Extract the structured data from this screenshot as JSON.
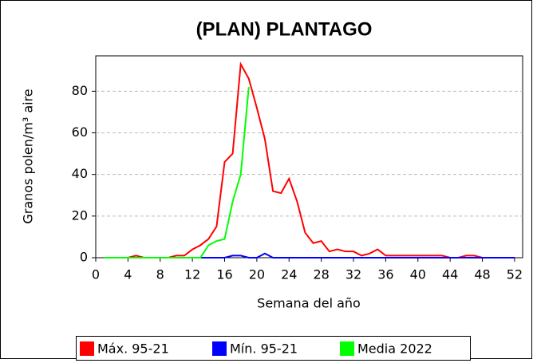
{
  "chart_data": {
    "type": "line",
    "title": "(PLAN)  PLANTAGO",
    "x_label": "Semana del año",
    "y_label": "Granos polen/m³ aire",
    "x": [
      1,
      2,
      3,
      4,
      5,
      6,
      7,
      8,
      9,
      10,
      11,
      12,
      13,
      14,
      15,
      16,
      17,
      18,
      19,
      20,
      21,
      22,
      23,
      24,
      25,
      26,
      27,
      28,
      29,
      30,
      31,
      32,
      33,
      34,
      35,
      36,
      37,
      38,
      39,
      40,
      41,
      42,
      43,
      44,
      45,
      46,
      47,
      48,
      49,
      50,
      51,
      52
    ],
    "series": [
      {
        "name": "Máx. 95-21",
        "color": "#ff0000",
        "values": [
          0,
          0,
          0,
          0,
          1,
          0,
          0,
          0,
          0,
          1,
          1,
          4,
          6,
          9,
          15,
          46,
          50,
          93,
          86,
          72,
          57,
          32,
          31,
          38,
          27,
          12,
          7,
          8,
          3,
          4,
          3,
          3,
          1,
          2,
          4,
          1,
          1,
          1,
          1,
          1,
          1,
          1,
          1,
          0,
          0,
          1,
          1,
          0,
          0,
          0,
          0,
          0
        ]
      },
      {
        "name": "Mín. 95-21",
        "color": "#0000ff",
        "values": [
          0,
          0,
          0,
          0,
          0,
          0,
          0,
          0,
          0,
          0,
          0,
          0,
          0,
          0,
          0,
          0,
          1,
          1,
          0,
          0,
          2,
          0,
          0,
          0,
          0,
          0,
          0,
          0,
          0,
          0,
          0,
          0,
          0,
          0,
          0,
          0,
          0,
          0,
          0,
          0,
          0,
          0,
          0,
          0,
          0,
          0,
          0,
          0,
          0,
          0,
          0,
          0
        ]
      },
      {
        "name": "Media 2022",
        "color": "#00ff00",
        "values": [
          0,
          0,
          0,
          0,
          0,
          0,
          0,
          0,
          0,
          0,
          0,
          0,
          0,
          6,
          8,
          9,
          27,
          40,
          82,
          null,
          null,
          null,
          null,
          null,
          null,
          null,
          null,
          null,
          null,
          null,
          null,
          null,
          null,
          null,
          null,
          null,
          null,
          null,
          null,
          null,
          null,
          null,
          null,
          null,
          null,
          null,
          null,
          null,
          null,
          null,
          null,
          null
        ]
      }
    ],
    "xlim": [
      0,
      53
    ],
    "xticks": [
      0,
      4,
      8,
      12,
      16,
      20,
      24,
      28,
      32,
      36,
      40,
      44,
      48,
      52
    ],
    "ylim": [
      0,
      97
    ],
    "yticks": [
      0,
      20,
      40,
      60,
      80
    ],
    "grid": true
  }
}
